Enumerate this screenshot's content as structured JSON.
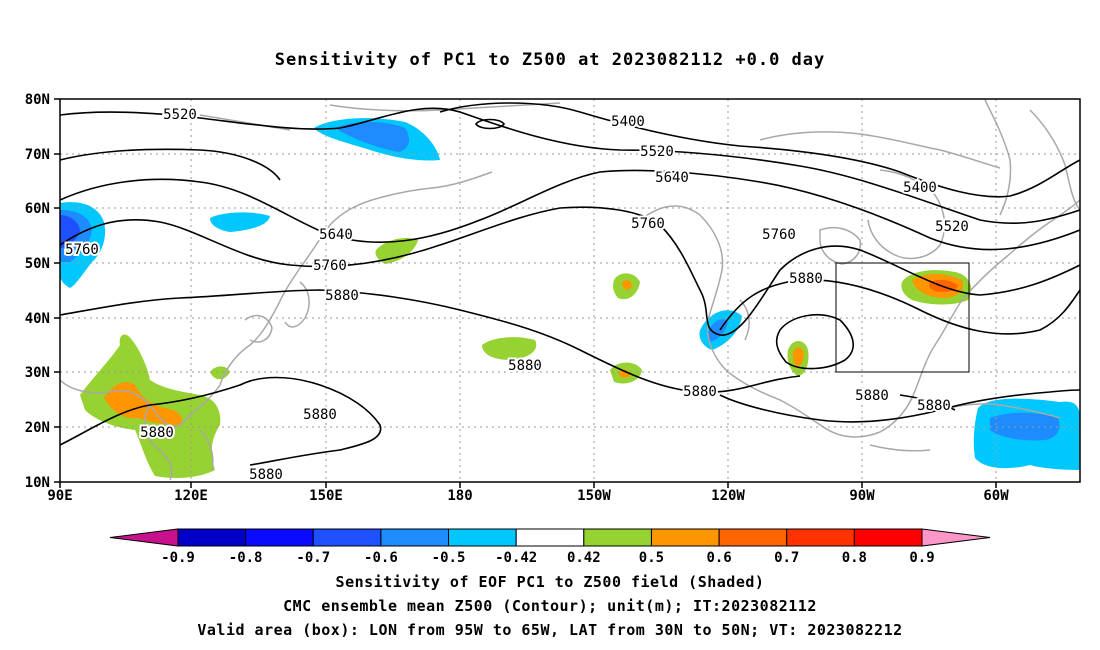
{
  "title": "Sensitivity of PC1 to Z500 at 2023082112 +0.0 day",
  "map": {
    "lat_labels": [
      "80N",
      "70N",
      "60N",
      "50N",
      "40N",
      "30N",
      "20N",
      "10N"
    ],
    "lon_labels": [
      "90E",
      "120E",
      "150E",
      "180",
      "150W",
      "120W",
      "90W",
      "60W"
    ],
    "contour_labels": [
      "5520",
      "5400",
      "5520",
      "5640",
      "5400",
      "5520",
      "5760",
      "5640",
      "5760",
      "5760",
      "5880",
      "5880",
      "5760",
      "5880",
      "5880",
      "5880",
      "5880",
      "5880",
      "5880",
      "5880"
    ],
    "valid_box": {
      "lon_from": "95W",
      "lon_to": "65W",
      "lat_from": "30N",
      "lat_to": "50N"
    }
  },
  "colorbar": {
    "ticks": [
      "-0.9",
      "-0.8",
      "-0.7",
      "-0.6",
      "-0.5",
      "-0.42",
      "0.42",
      "0.5",
      "0.6",
      "0.7",
      "0.8",
      "0.9"
    ],
    "colors": [
      "#c8118c",
      "#0000c8",
      "#0a0aff",
      "#1e50ff",
      "#1e8cff",
      "#00c8ff",
      "#ffffff",
      "#96d232",
      "#ff9600",
      "#ff6400",
      "#ff3200",
      "#ff0000",
      "#ff96c8"
    ]
  },
  "captions": {
    "line1": "Sensitivity of EOF PC1 to Z500 field (Shaded)",
    "line2": "CMC ensemble mean Z500 (Contour); unit(m); IT:2023082112",
    "line3": "Valid area (box): LON from 95W to 65W, LAT from 30N to 50N; VT: 2023082212"
  }
}
